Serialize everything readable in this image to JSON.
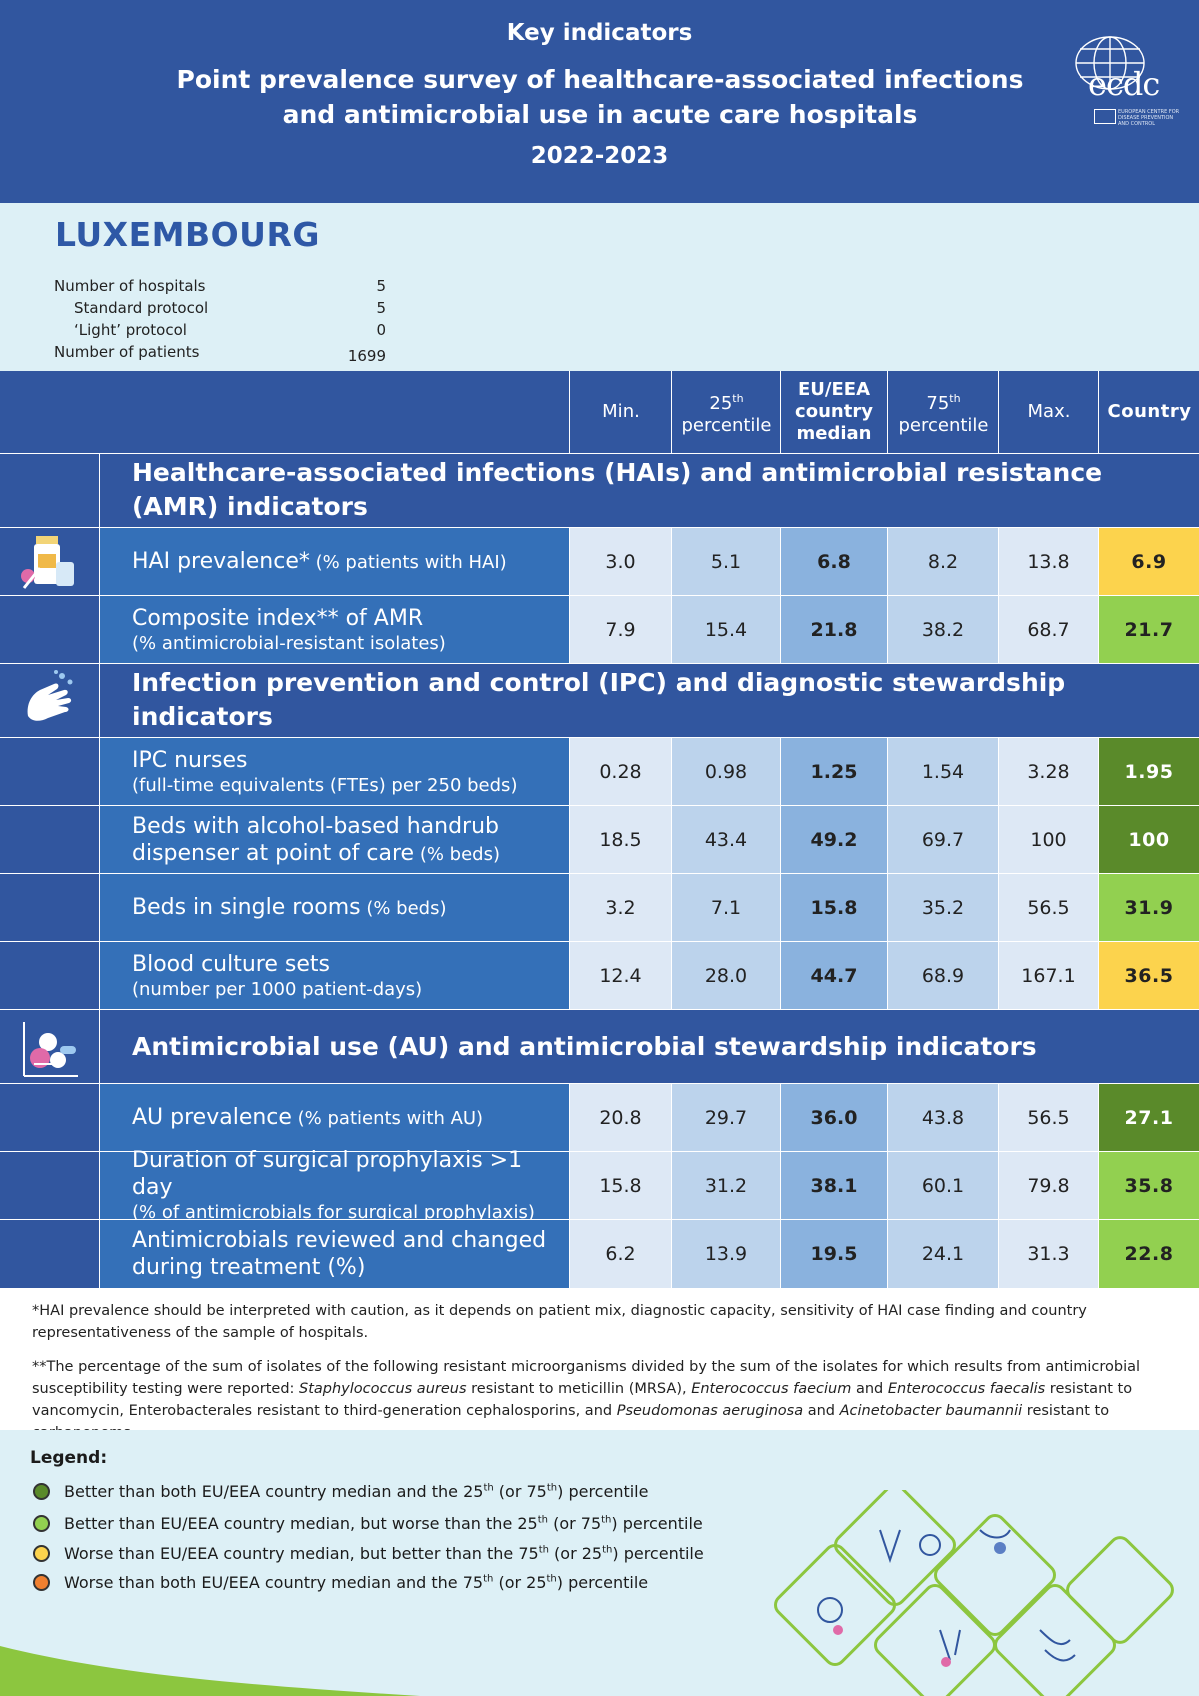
{
  "header": {
    "kicker": "Key indicators",
    "title": "Point prevalence survey of healthcare-associated infections and antimicrobial use in acute care hospitals",
    "years": "2022-2023",
    "logo_text": "ecdc",
    "logo_sub": "EUROPEAN CENTRE FOR DISEASE PREVENTION AND CONTROL"
  },
  "country": "LUXEMBOURG",
  "info": [
    {
      "label": "Number of hospitals",
      "value": "5"
    },
    {
      "label": "Standard protocol",
      "value": "5"
    },
    {
      "label": "‘Light’ protocol",
      "value": "0"
    },
    {
      "label": "Number of patients",
      "value": "1699"
    }
  ],
  "columns": {
    "min": "Min.",
    "p25_num": "25",
    "p25_sup": "th",
    "p25_word": "percentile",
    "median": "EU/EEA country median",
    "p75_num": "75",
    "p75_sup": "th",
    "p75_word": "percentile",
    "max": "Max.",
    "country": "Country"
  },
  "sections": [
    {
      "title": "Healthcare-associated infections (HAIs) and antimicrobial resistance (AMR) indicators",
      "icon": "medicine-bottles-icon"
    },
    {
      "title": "Infection prevention and control (IPC) and diagnostic stewardship indicators",
      "icon": "hand-washing-icon"
    },
    {
      "title": "Antimicrobial use (AU) and antimicrobial stewardship indicators",
      "icon": "pills-icon"
    }
  ],
  "rows": [
    {
      "main": "HAI prevalence*",
      "main_small": " (% patients with HAI)",
      "sub": "",
      "min": "3.0",
      "p25": "5.1",
      "median": "6.8",
      "p75": "8.2",
      "max": "13.8",
      "country": "6.9",
      "color": "#fcd34d"
    },
    {
      "main": "Composite index** of AMR",
      "main_small": "",
      "sub": "(% antimicrobial-resistant isolates)",
      "min": "7.9",
      "p25": "15.4",
      "median": "21.8",
      "p75": "38.2",
      "max": "68.7",
      "country": "21.7",
      "color": "#92d050"
    },
    {
      "main": "IPC nurses",
      "main_small": "",
      "sub": "(full-time equivalents (FTEs) per 250 beds)",
      "min": "0.28",
      "p25": "0.98",
      "median": "1.25",
      "p75": "1.54",
      "max": "3.28",
      "country": "1.95",
      "color": "#5a8a2a"
    },
    {
      "main": "Beds with alcohol-based handrub",
      "main2": "dispenser at point of care",
      "main2_small": " (% beds)",
      "sub": "",
      "min": "18.5",
      "p25": "43.4",
      "median": "49.2",
      "p75": "69.7",
      "max": "100",
      "country": "100",
      "color": "#5a8a2a"
    },
    {
      "main": "Beds in single rooms",
      "main_small": " (% beds)",
      "sub": "",
      "min": "3.2",
      "p25": "7.1",
      "median": "15.8",
      "p75": "35.2",
      "max": "56.5",
      "country": "31.9",
      "color": "#92d050"
    },
    {
      "main": "Blood culture sets",
      "main_small": "",
      "sub": "(number per 1000 patient-days)",
      "min": "12.4",
      "p25": "28.0",
      "median": "44.7",
      "p75": "68.9",
      "max": "167.1",
      "country": "36.5",
      "color": "#fcd34d"
    },
    {
      "main": "AU prevalence",
      "main_small": " (% patients with AU)",
      "sub": "",
      "min": "20.8",
      "p25": "29.7",
      "median": "36.0",
      "p75": "43.8",
      "max": "56.5",
      "country": "27.1",
      "color": "#5a8a2a"
    },
    {
      "main": "Duration of surgical prophylaxis >1 day",
      "main_small": "",
      "sub": "(% of antimicrobials for surgical prophylaxis)",
      "min": "15.8",
      "p25": "31.2",
      "median": "38.1",
      "p75": "60.1",
      "max": "79.8",
      "country": "35.8",
      "color": "#92d050"
    },
    {
      "main": "Antimicrobials reviewed and changed",
      "main2": "during treatment (%)",
      "sub": "",
      "min": "6.2",
      "p25": "13.9",
      "median": "19.5",
      "p75": "24.1",
      "max": "31.3",
      "country": "22.8",
      "color": "#92d050"
    }
  ],
  "footnotes": {
    "f1": "*HAI prevalence should be interpreted with caution, as it depends on patient mix, diagnostic capacity, sensitivity of HAI case finding and country representativeness of the sample of hospitals.",
    "f2_a": "**The percentage of the sum of isolates of the following resistant microorganisms divided by the sum of the isolates for which results from antimicrobial susceptibility testing were reported: ",
    "f2_sa": "Staphylococcus aureus",
    "f2_b": " resistant to meticillin (MRSA), ",
    "f2_efm": "Enterococcus faecium",
    "f2_c": " and ",
    "f2_efs": "Enterococcus faecalis",
    "f2_d": " resistant to vancomycin, Enterobacterales resistant to third-generation cephalosporins, and ",
    "f2_pa": "Pseudomonas aeruginosa",
    "f2_e": " and ",
    "f2_ab": "Acinetobacter baumannii",
    "f2_f": " resistant to carbapenems."
  },
  "legend": {
    "title": "Legend:",
    "items": [
      {
        "color": "#5a8a2a",
        "a": "Better than both EU/EEA country median and the 25",
        "b": " (or 75",
        "c": ") percentile",
        "s1": "th",
        "s2": "th"
      },
      {
        "color": "#92d050",
        "a": "Better than EU/EEA country median, but worse than the 25",
        "b": " (or 75",
        "c": ") percentile",
        "s1": "th",
        "s2": "th"
      },
      {
        "color": "#fcd34d",
        "a": "Worse than EU/EEA country median, but better than the 75",
        "b": " (or 25",
        "c": ") percentile",
        "s1": "th",
        "s2": "th"
      },
      {
        "color": "#f08030",
        "a": "Worse than both EU/EEA country median and the 75",
        "b": " (or 25",
        "c": ") percentile",
        "s1": "th",
        "s2": "th"
      }
    ]
  }
}
